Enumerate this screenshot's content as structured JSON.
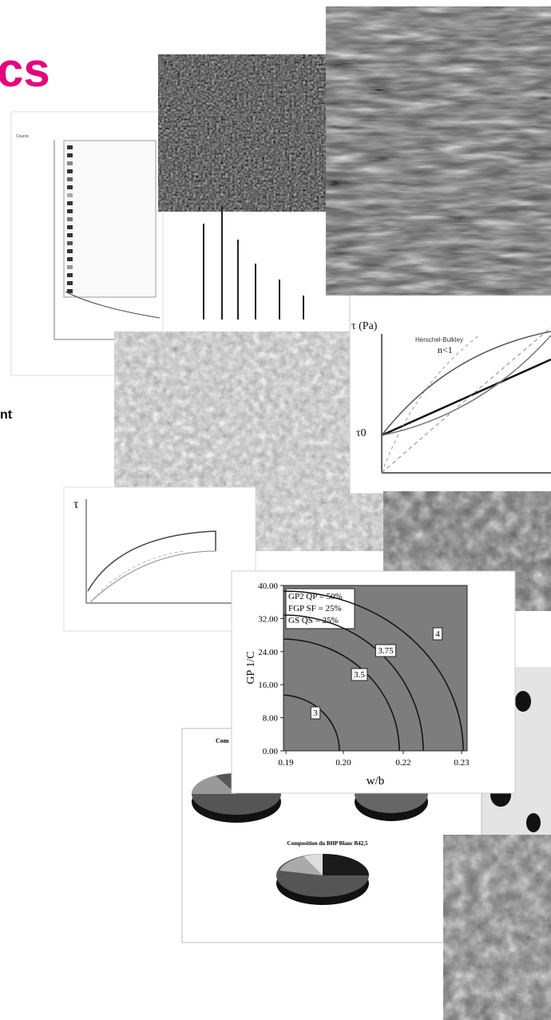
{
  "header": {
    "title_fragment": "cs"
  },
  "body": {
    "text_fragment": "nt"
  },
  "xrd": {
    "axis_label": "Counts"
  },
  "rheology": {
    "y_label": "τ (Pa)",
    "curve_label": "Herschel-Bulkley",
    "condition": "n<1",
    "yield_label": "τ0"
  },
  "hysteresis": {
    "y_label": "τ"
  },
  "contour": {
    "legend": [
      "GP2 QP = 50%",
      "FGP SF = 25%",
      "GS QS = 25%"
    ],
    "y_label": "GP 1/C",
    "x_label": "w/b",
    "yticks": [
      "0.00",
      "8.00",
      "16.00",
      "24.00",
      "32.00",
      "40.00"
    ],
    "xticks": [
      "0.19",
      "0.20",
      "0.22",
      "0.23"
    ],
    "levels": [
      "3",
      "3.5",
      "3.75",
      "4"
    ]
  },
  "pie_document": {
    "title_fragment": "Com",
    "title": "Composition du BHP Blanc B42,5"
  }
}
